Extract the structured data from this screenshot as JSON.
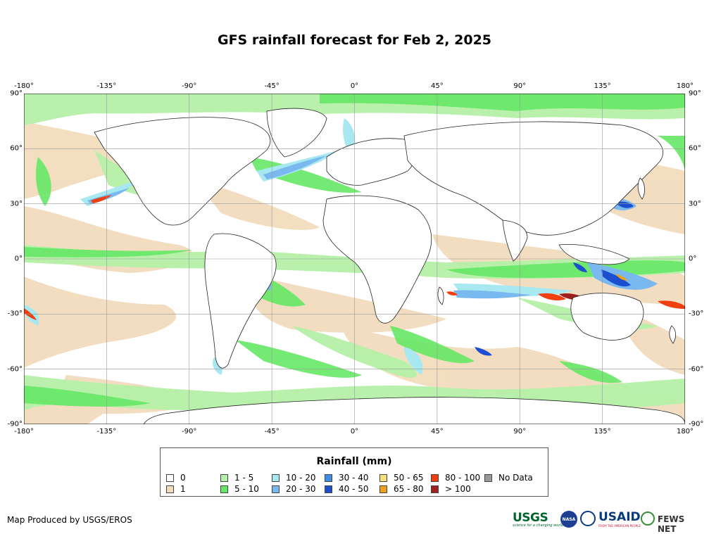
{
  "title": "GFS rainfall forecast for Feb 2, 2025",
  "axes": {
    "lon_ticks": [
      "-180°",
      "-135°",
      "-90°",
      "-45°",
      "0°",
      "45°",
      "90°",
      "135°",
      "180°"
    ],
    "lat_ticks": [
      "90°",
      "60°",
      "30°",
      "0°",
      "-30°",
      "-60°",
      "-90°"
    ],
    "lon_range": [
      -180,
      180
    ],
    "lat_range": [
      -90,
      90
    ],
    "grid": true
  },
  "legend": {
    "title": "Rainfall (mm)",
    "items": [
      {
        "label": "0",
        "color": "#ffffff"
      },
      {
        "label": "1",
        "color": "#f2dcbd"
      },
      {
        "label": "1 - 5",
        "color": "#b5f0a8"
      },
      {
        "label": "5 - 10",
        "color": "#66e866"
      },
      {
        "label": "10 - 20",
        "color": "#a8e8f0"
      },
      {
        "label": "20 - 30",
        "color": "#7ab8f0"
      },
      {
        "label": "30 - 40",
        "color": "#3c8ee8"
      },
      {
        "label": "40 - 50",
        "color": "#1c4ed0"
      },
      {
        "label": "50 - 65",
        "color": "#f8e080"
      },
      {
        "label": "65 - 80",
        "color": "#f0a020"
      },
      {
        "label": "80 - 100",
        "color": "#f04010"
      },
      {
        "label": "> 100",
        "color": "#a02020"
      },
      {
        "label": "No Data",
        "color": "#999999"
      }
    ]
  },
  "footer": {
    "credit": "Map Produced by USGS/EROS",
    "logos": {
      "usgs": "USGS",
      "usgs_tagline": "science for a changing world",
      "nasa": "NASA",
      "usaid": "USAID",
      "usaid_tagline": "FROM THE AMERICAN PEOPLE",
      "fews": "FEWS NET"
    }
  }
}
